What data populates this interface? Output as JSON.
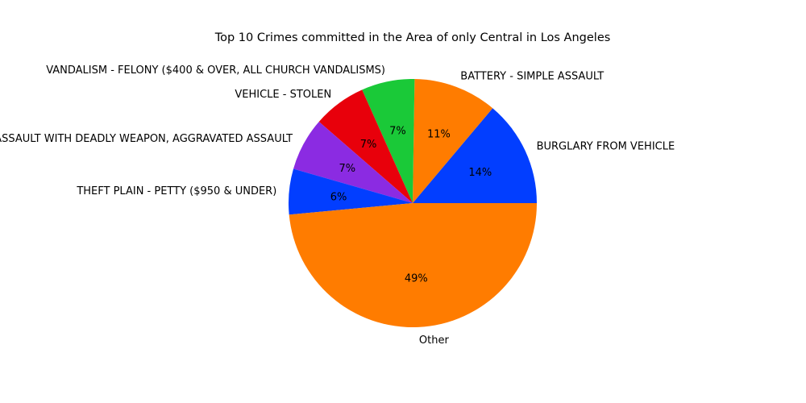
{
  "chart_data": {
    "type": "pie",
    "title": "Top 10 Crimes committed in the Area of only Central in Los Angeles",
    "slices": [
      {
        "label": "BURGLARY FROM VEHICLE",
        "value": 14,
        "pct_label": "14%",
        "color": "#023eff"
      },
      {
        "label": "BATTERY - SIMPLE ASSAULT",
        "value": 11,
        "pct_label": "11%",
        "color": "#ff7c00"
      },
      {
        "label": "VANDALISM - FELONY ($400 & OVER, ALL CHURCH VANDALISMS)",
        "value": 7,
        "pct_label": "7%",
        "color": "#1ac938"
      },
      {
        "label": "VEHICLE - STOLEN",
        "value": 7,
        "pct_label": "7%",
        "color": "#e8000b"
      },
      {
        "label": "ASSAULT WITH DEADLY WEAPON, AGGRAVATED ASSAULT",
        "value": 7,
        "pct_label": "7%",
        "color": "#8b2be2"
      },
      {
        "label": "THEFT PLAIN - PETTY ($950 & UNDER)",
        "value": 6,
        "pct_label": "6%",
        "color": "#023eff"
      },
      {
        "label": "Other",
        "value": 49,
        "pct_label": "49%",
        "color": "#ff7c00"
      }
    ]
  }
}
